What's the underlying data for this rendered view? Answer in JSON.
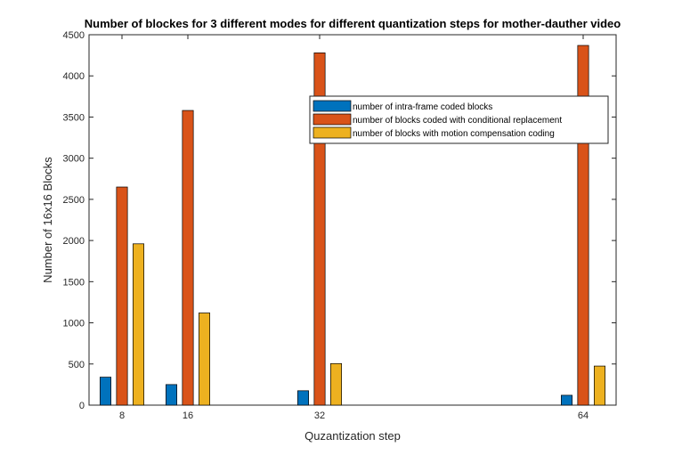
{
  "chart_data": {
    "type": "bar",
    "title": "Number of blockes for 3 different modes for different quantization steps for mother-dauther video",
    "xlabel": "Quzantization step",
    "ylabel": "Number of 16x16 Blocks",
    "x": [
      8,
      16,
      32,
      64
    ],
    "xlim": [
      4,
      68
    ],
    "ylim": [
      0,
      4500
    ],
    "yticks": [
      0,
      500,
      1000,
      1500,
      2000,
      2500,
      3000,
      3500,
      4000,
      4500
    ],
    "xticks": [
      8,
      16,
      32,
      64
    ],
    "grid": false,
    "legend_position": "top-right",
    "series": [
      {
        "name": "number of intra-frame coded blocks",
        "color": "#0072BD",
        "values": [
          340,
          250,
          175,
          120
        ]
      },
      {
        "name": "number of blocks coded with conditional replacement",
        "color": "#D95319",
        "values": [
          2650,
          3580,
          4280,
          4370
        ]
      },
      {
        "name": "number of blocks with motion compensation coding",
        "color": "#EDB120",
        "values": [
          1960,
          1120,
          505,
          475
        ]
      }
    ]
  }
}
